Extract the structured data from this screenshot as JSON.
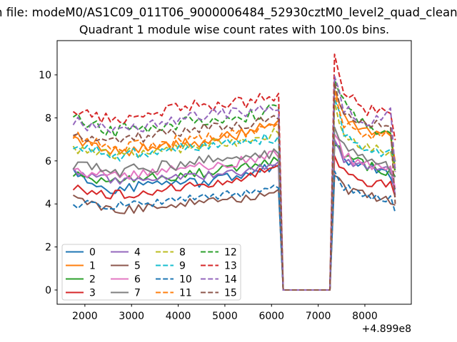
{
  "figure": {
    "file_title_fragment": "n file: modeM0/AS1C09_011T06_9000006484_52930cztM0_level2_quad_clean",
    "axes_title": "Quadrant 1 module wise count rates with 100.0s bins."
  },
  "chart_data": {
    "type": "line",
    "title": "Quadrant 1 module wise count rates with 100.0s bins.",
    "xlabel": "",
    "ylabel": "",
    "x_offset_label": "+4.899e8",
    "x_ticks": [
      2000,
      3000,
      4000,
      5000,
      6000,
      7000,
      8000
    ],
    "y_ticks": [
      0,
      2,
      4,
      6,
      8,
      10
    ],
    "xlim": [
      1405,
      8995
    ],
    "ylim": [
      -0.662,
      11.59
    ],
    "bin_seconds": 100.0,
    "x_start": 1750,
    "x_step": 100,
    "x_end": 8650,
    "zero_gap": {
      "start": 6250,
      "end": 7250
    },
    "legend": {
      "columns": 4,
      "location": "lower left",
      "labels": [
        "0",
        "1",
        "2",
        "3",
        "4",
        "5",
        "6",
        "7",
        "8",
        "9",
        "10",
        "11",
        "12",
        "13",
        "14",
        "15"
      ]
    },
    "series": [
      {
        "label": "0",
        "color": "#1f77b4",
        "dashed": false,
        "amp": 0.22,
        "anchors": [
          [
            1750,
            5.6
          ],
          [
            2100,
            4.9
          ],
          [
            2600,
            4.6
          ],
          [
            3500,
            5.0
          ],
          [
            4500,
            5.0
          ],
          [
            5500,
            5.4
          ],
          [
            6150,
            5.8
          ],
          [
            7350,
            6.9
          ],
          [
            7550,
            6.0
          ],
          [
            8000,
            5.8
          ],
          [
            8550,
            5.3
          ],
          [
            8650,
            4.6
          ]
        ]
      },
      {
        "label": "1",
        "color": "#ff7f0e",
        "dashed": false,
        "amp": 0.25,
        "anchors": [
          [
            1750,
            6.9
          ],
          [
            2600,
            6.4
          ],
          [
            3500,
            6.6
          ],
          [
            4500,
            6.9
          ],
          [
            5500,
            7.3
          ],
          [
            6150,
            7.8
          ],
          [
            7350,
            9.3
          ],
          [
            7550,
            8.1
          ],
          [
            8000,
            7.3
          ],
          [
            8550,
            7.3
          ],
          [
            8650,
            5.9
          ]
        ]
      },
      {
        "label": "2",
        "color": "#2ca02c",
        "dashed": false,
        "amp": 0.25,
        "anchors": [
          [
            1750,
            5.4
          ],
          [
            2600,
            5.0
          ],
          [
            3500,
            5.2
          ],
          [
            4500,
            5.4
          ],
          [
            5500,
            5.7
          ],
          [
            6150,
            6.1
          ],
          [
            7350,
            6.7
          ],
          [
            7550,
            6.3
          ],
          [
            8000,
            5.8
          ],
          [
            8550,
            5.5
          ],
          [
            8650,
            5.4
          ]
        ]
      },
      {
        "label": "3",
        "color": "#d62728",
        "dashed": false,
        "amp": 0.22,
        "anchors": [
          [
            1750,
            4.8
          ],
          [
            2600,
            4.4
          ],
          [
            3500,
            4.6
          ],
          [
            4500,
            4.9
          ],
          [
            5500,
            5.2
          ],
          [
            6150,
            5.8
          ],
          [
            7350,
            6.2
          ],
          [
            7550,
            5.6
          ],
          [
            8000,
            5.0
          ],
          [
            8550,
            4.9
          ],
          [
            8650,
            4.2
          ]
        ]
      },
      {
        "label": "4",
        "color": "#9467bd",
        "dashed": false,
        "amp": 0.2,
        "anchors": [
          [
            1750,
            5.5
          ],
          [
            2600,
            5.1
          ],
          [
            3500,
            5.1
          ],
          [
            4500,
            5.3
          ],
          [
            5500,
            5.5
          ],
          [
            6150,
            5.9
          ],
          [
            7350,
            7.0
          ],
          [
            7550,
            6.0
          ],
          [
            8000,
            5.7
          ],
          [
            8550,
            5.5
          ],
          [
            8650,
            4.5
          ]
        ]
      },
      {
        "label": "5",
        "color": "#8c564b",
        "dashed": false,
        "amp": 0.22,
        "anchors": [
          [
            1750,
            4.2
          ],
          [
            2600,
            3.7
          ],
          [
            3500,
            3.8
          ],
          [
            4500,
            4.1
          ],
          [
            5500,
            4.3
          ],
          [
            6150,
            4.6
          ],
          [
            7350,
            5.3
          ],
          [
            7550,
            4.7
          ],
          [
            8000,
            4.4
          ],
          [
            8550,
            4.1
          ],
          [
            8650,
            3.9
          ]
        ]
      },
      {
        "label": "6",
        "color": "#e377c2",
        "dashed": false,
        "amp": 0.25,
        "anchors": [
          [
            1750,
            5.5
          ],
          [
            2600,
            5.3
          ],
          [
            3500,
            5.5
          ],
          [
            4500,
            5.8
          ],
          [
            5500,
            6.0
          ],
          [
            6150,
            6.3
          ],
          [
            7350,
            7.2
          ],
          [
            7550,
            6.2
          ],
          [
            8000,
            5.9
          ],
          [
            8550,
            5.7
          ],
          [
            8650,
            4.8
          ]
        ]
      },
      {
        "label": "7",
        "color": "#7f7f7f",
        "dashed": false,
        "amp": 0.28,
        "anchors": [
          [
            1750,
            5.8
          ],
          [
            2600,
            5.5
          ],
          [
            3500,
            5.7
          ],
          [
            4500,
            6.0
          ],
          [
            5500,
            6.2
          ],
          [
            6150,
            6.4
          ],
          [
            7350,
            7.5
          ],
          [
            7550,
            6.6
          ],
          [
            8000,
            6.1
          ],
          [
            8550,
            5.6
          ],
          [
            8650,
            5.4
          ]
        ]
      },
      {
        "label": "8",
        "color": "#bcbd22",
        "dashed": true,
        "amp": 0.25,
        "anchors": [
          [
            1750,
            6.6
          ],
          [
            2600,
            6.3
          ],
          [
            3500,
            6.5
          ],
          [
            4500,
            6.7
          ],
          [
            5500,
            7.0
          ],
          [
            6150,
            7.3
          ],
          [
            7350,
            8.8
          ],
          [
            7550,
            7.2
          ],
          [
            8000,
            6.7
          ],
          [
            8550,
            6.4
          ],
          [
            8650,
            5.5
          ]
        ]
      },
      {
        "label": "9",
        "color": "#17becf",
        "dashed": true,
        "amp": 0.28,
        "anchors": [
          [
            1750,
            6.7
          ],
          [
            2600,
            6.2
          ],
          [
            3500,
            6.4
          ],
          [
            4500,
            6.7
          ],
          [
            5500,
            6.9
          ],
          [
            6150,
            7.1
          ],
          [
            7350,
            8.9
          ],
          [
            7550,
            7.4
          ],
          [
            8000,
            6.5
          ],
          [
            8550,
            6.3
          ],
          [
            8650,
            6.0
          ]
        ]
      },
      {
        "label": "10",
        "color": "#1f77b4",
        "dashed": true,
        "amp": 0.2,
        "anchors": [
          [
            1750,
            4.0
          ],
          [
            2600,
            3.9
          ],
          [
            3500,
            4.0
          ],
          [
            4500,
            4.3
          ],
          [
            5500,
            4.5
          ],
          [
            6150,
            4.8
          ],
          [
            7350,
            5.5
          ],
          [
            7550,
            4.8
          ],
          [
            8000,
            4.4
          ],
          [
            8550,
            4.2
          ],
          [
            8650,
            3.6
          ]
        ]
      },
      {
        "label": "11",
        "color": "#ff7f0e",
        "dashed": true,
        "amp": 0.3,
        "anchors": [
          [
            1750,
            7.1
          ],
          [
            2600,
            6.6
          ],
          [
            3500,
            6.8
          ],
          [
            4500,
            7.1
          ],
          [
            5500,
            7.4
          ],
          [
            6150,
            7.7
          ],
          [
            7350,
            9.1
          ],
          [
            7550,
            7.8
          ],
          [
            8000,
            7.2
          ],
          [
            8550,
            7.2
          ],
          [
            8650,
            5.8
          ]
        ]
      },
      {
        "label": "12",
        "color": "#2ca02c",
        "dashed": true,
        "amp": 0.3,
        "anchors": [
          [
            1750,
            8.0
          ],
          [
            2600,
            7.4
          ],
          [
            3500,
            7.6
          ],
          [
            4500,
            7.9
          ],
          [
            5500,
            8.1
          ],
          [
            6150,
            8.4
          ],
          [
            7350,
            9.8
          ],
          [
            7550,
            8.8
          ],
          [
            8000,
            7.7
          ],
          [
            8550,
            7.0
          ],
          [
            8650,
            5.5
          ]
        ]
      },
      {
        "label": "13",
        "color": "#d62728",
        "dashed": true,
        "amp": 0.3,
        "anchors": [
          [
            1750,
            8.2
          ],
          [
            2600,
            7.9
          ],
          [
            3500,
            8.2
          ],
          [
            4500,
            8.6
          ],
          [
            5500,
            8.7
          ],
          [
            6150,
            9.1
          ],
          [
            7350,
            11.0
          ],
          [
            7550,
            9.4
          ],
          [
            8000,
            8.3
          ],
          [
            8550,
            8.4
          ],
          [
            8650,
            6.9
          ]
        ]
      },
      {
        "label": "14",
        "color": "#9467bd",
        "dashed": true,
        "amp": 0.3,
        "anchors": [
          [
            1750,
            7.8
          ],
          [
            2600,
            7.5
          ],
          [
            3500,
            7.7
          ],
          [
            4500,
            8.1
          ],
          [
            5500,
            8.3
          ],
          [
            6150,
            8.5
          ],
          [
            7350,
            10.0
          ],
          [
            7550,
            8.5
          ],
          [
            8000,
            7.9
          ],
          [
            8550,
            8.2
          ],
          [
            8650,
            5.6
          ]
        ]
      },
      {
        "label": "15",
        "color": "#8c564b",
        "dashed": true,
        "amp": 0.25,
        "anchors": [
          [
            1750,
            7.3
          ],
          [
            2600,
            6.9
          ],
          [
            3500,
            7.2
          ],
          [
            4500,
            7.5
          ],
          [
            5500,
            7.7
          ],
          [
            6150,
            8.0
          ],
          [
            7350,
            9.6
          ],
          [
            7550,
            8.1
          ],
          [
            8000,
            7.8
          ],
          [
            8550,
            7.6
          ],
          [
            8650,
            4.1
          ]
        ]
      }
    ]
  }
}
